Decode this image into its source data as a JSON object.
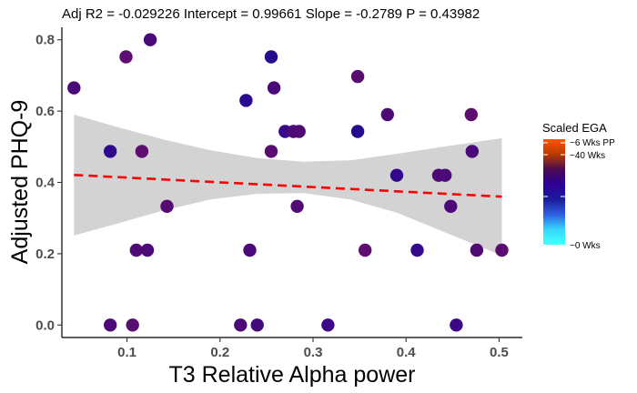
{
  "chart_data": {
    "type": "scatter",
    "title": "Adj R2 =  -0.029226 Intercept = 0.99661  Slope = -0.2789  P = 0.43982",
    "xlabel": "T3 Relative Alpha power",
    "ylabel": "Adjusted PHQ-9",
    "xlim": [
      0.03,
      0.525
    ],
    "ylim": [
      -0.035,
      0.835
    ],
    "x_ticks": [
      "0.1",
      "0.2",
      "0.3",
      "0.4",
      "0.5"
    ],
    "y_ticks": [
      "0.0",
      "0.2",
      "0.4",
      "0.6",
      "0.8"
    ],
    "grid": false,
    "trend_line": {
      "style": "dashed",
      "color": "#ff0000",
      "x": [
        0.043,
        0.503
      ],
      "y": [
        0.421,
        0.36
      ]
    },
    "confidence_band": {
      "color": "#d3d3d3",
      "x": [
        0.043,
        0.09,
        0.14,
        0.19,
        0.24,
        0.29,
        0.34,
        0.39,
        0.44,
        0.503
      ],
      "upper": [
        0.59,
        0.555,
        0.52,
        0.49,
        0.468,
        0.458,
        0.462,
        0.48,
        0.5,
        0.524
      ],
      "lower": [
        0.251,
        0.285,
        0.322,
        0.352,
        0.368,
        0.37,
        0.352,
        0.315,
        0.262,
        0.195
      ]
    },
    "legend": {
      "title": "Scaled EGA",
      "placement": "right",
      "labels": [
        "~6 Wks PP",
        "~40 Wks",
        "~0 Wks"
      ],
      "gradient_colors": [
        "#ff5500",
        "#b83a00",
        "#4a0a50",
        "#2c0099",
        "#1c1c9a",
        "#2e60e0",
        "#36d8ff",
        "#44ffff"
      ]
    },
    "points": [
      {
        "x": 0.043,
        "y": 0.665,
        "color": "#4a0878"
      },
      {
        "x": 0.082,
        "y": 0.487,
        "color": "#2d0a8c"
      },
      {
        "x": 0.082,
        "y": 0.0,
        "color": "#4b0a78"
      },
      {
        "x": 0.099,
        "y": 0.752,
        "color": "#5e0d70"
      },
      {
        "x": 0.106,
        "y": 0.0,
        "color": "#5a0d70"
      },
      {
        "x": 0.11,
        "y": 0.21,
        "color": "#500a74"
      },
      {
        "x": 0.116,
        "y": 0.487,
        "color": "#5e0d70"
      },
      {
        "x": 0.122,
        "y": 0.21,
        "color": "#4d0a76"
      },
      {
        "x": 0.125,
        "y": 0.8,
        "color": "#4a0878"
      },
      {
        "x": 0.143,
        "y": 0.333,
        "color": "#560a72"
      },
      {
        "x": 0.222,
        "y": 0.0,
        "color": "#4b0a78"
      },
      {
        "x": 0.228,
        "y": 0.63,
        "color": "#2a0a8e"
      },
      {
        "x": 0.232,
        "y": 0.21,
        "color": "#4a0878"
      },
      {
        "x": 0.24,
        "y": 0.0,
        "color": "#430a7c"
      },
      {
        "x": 0.255,
        "y": 0.752,
        "color": "#260a90"
      },
      {
        "x": 0.255,
        "y": 0.487,
        "color": "#5a0d70"
      },
      {
        "x": 0.258,
        "y": 0.665,
        "color": "#4a0878"
      },
      {
        "x": 0.27,
        "y": 0.543,
        "color": "#38088a"
      },
      {
        "x": 0.279,
        "y": 0.543,
        "color": "#4d0a76"
      },
      {
        "x": 0.285,
        "y": 0.543,
        "color": "#500a74"
      },
      {
        "x": 0.283,
        "y": 0.333,
        "color": "#520a74"
      },
      {
        "x": 0.316,
        "y": 0.0,
        "color": "#3c0888"
      },
      {
        "x": 0.348,
        "y": 0.697,
        "color": "#5a0d70"
      },
      {
        "x": 0.348,
        "y": 0.543,
        "color": "#260a90"
      },
      {
        "x": 0.356,
        "y": 0.21,
        "color": "#5e0d70"
      },
      {
        "x": 0.38,
        "y": 0.59,
        "color": "#4d0a76"
      },
      {
        "x": 0.39,
        "y": 0.42,
        "color": "#33088c"
      },
      {
        "x": 0.412,
        "y": 0.21,
        "color": "#330a8c"
      },
      {
        "x": 0.435,
        "y": 0.42,
        "color": "#4a0878"
      },
      {
        "x": 0.442,
        "y": 0.42,
        "color": "#4d0a76"
      },
      {
        "x": 0.448,
        "y": 0.333,
        "color": "#4a0878"
      },
      {
        "x": 0.454,
        "y": 0.0,
        "color": "#3c0888"
      },
      {
        "x": 0.47,
        "y": 0.59,
        "color": "#5e0d70"
      },
      {
        "x": 0.471,
        "y": 0.487,
        "color": "#4a0878"
      },
      {
        "x": 0.476,
        "y": 0.21,
        "color": "#500a74"
      },
      {
        "x": 0.503,
        "y": 0.21,
        "color": "#5a0d70"
      }
    ]
  }
}
